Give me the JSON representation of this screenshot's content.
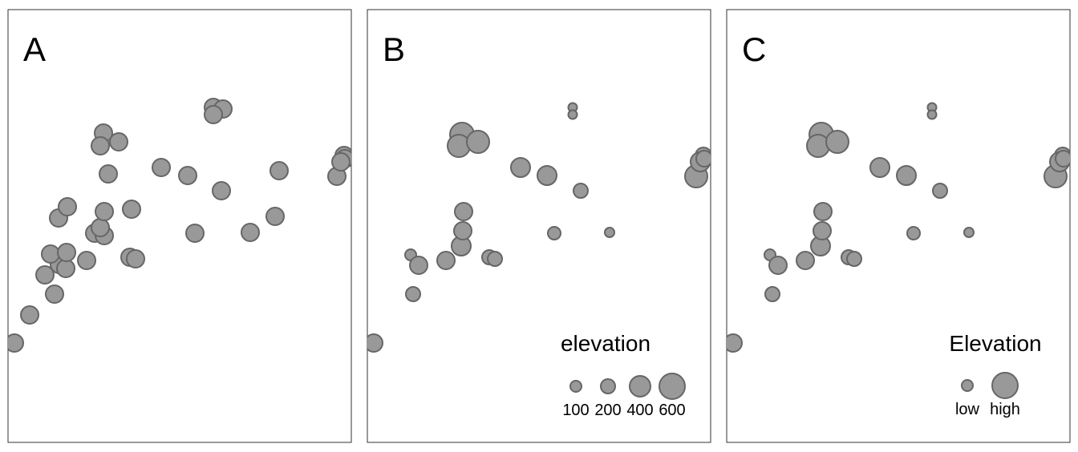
{
  "colors": {
    "point_fill": "#999999",
    "point_stroke": "#666666",
    "frame": "#333333",
    "text": "#000000"
  },
  "chart_data": [
    {
      "type": "scatter",
      "panel_label": "A",
      "size_encoding": "none",
      "points": [
        {
          "x": 1,
          "y": 1
        },
        {
          "x": 2,
          "y": 2
        },
        {
          "x": 3,
          "y": 3
        },
        {
          "x": 4,
          "y": 4
        },
        {
          "x": 5,
          "y": 5
        },
        {
          "x": 6,
          "y": 6
        },
        {
          "x": 7,
          "y": 7
        },
        {
          "x": 8,
          "y": 8
        },
        {
          "x": 9,
          "y": 9
        },
        {
          "x": 10,
          "y": 10
        },
        {
          "x": 11,
          "y": 11
        },
        {
          "x": 12,
          "y": 12
        },
        {
          "x": 13,
          "y": 13
        },
        {
          "x": 14,
          "y": 14
        },
        {
          "x": 15,
          "y": 15
        },
        {
          "x": 16,
          "y": 16
        },
        {
          "x": 17,
          "y": 17
        },
        {
          "x": 18,
          "y": 18
        },
        {
          "x": 19,
          "y": 19
        },
        {
          "x": 20,
          "y": 20
        },
        {
          "x": 21,
          "y": 21
        },
        {
          "x": 22,
          "y": 22
        },
        {
          "x": 23,
          "y": 23
        },
        {
          "x": 24,
          "y": 24
        },
        {
          "x": 25,
          "y": 25
        },
        {
          "x": 26,
          "y": 26
        },
        {
          "x": 27,
          "y": 27
        },
        {
          "x": 28,
          "y": 28
        },
        {
          "x": 29,
          "y": 29
        },
        {
          "x": 30,
          "y": 30
        },
        {
          "x": 31,
          "y": 31
        },
        {
          "x": 32,
          "y": 32
        },
        {
          "x": 33,
          "y": 33
        },
        {
          "x": 34,
          "y": 34
        },
        {
          "x": 35,
          "y": 35
        },
        {
          "x": 36,
          "y": 36
        }
      ]
    },
    {
      "type": "scatter",
      "panel_label": "B",
      "size_encoding": "elevation",
      "legend": {
        "title": "elevation",
        "values": [
          100,
          200,
          400,
          600
        ],
        "labels": [
          "100",
          "200",
          "400",
          "600"
        ]
      },
      "points": [
        {
          "x": 1,
          "y": 1,
          "elevation": 300
        },
        {
          "x": 2,
          "y": 2,
          "elevation": 230
        },
        {
          "x": 3,
          "y": 3,
          "elevation": 100
        },
        {
          "x": 4,
          "y": 4,
          "elevation": 290
        },
        {
          "x": 5,
          "y": 5,
          "elevation": 270
        },
        {
          "x": 6,
          "y": 6,
          "elevation": 240
        },
        {
          "x": 7,
          "y": 7,
          "elevation": 260
        },
        {
          "x": 8,
          "y": 8,
          "elevation": 300
        },
        {
          "x": 9,
          "y": 9,
          "elevation": 290
        },
        {
          "x": 10,
          "y": 10,
          "elevation": 260
        },
        {
          "x": 11,
          "y": 11,
          "elevation": 220
        },
        {
          "x": 12,
          "y": 12,
          "elevation": 520
        },
        {
          "x": 13,
          "y": 13,
          "elevation": 510
        },
        {
          "x": 14,
          "y": 14,
          "elevation": 470
        },
        {
          "x": 15,
          "y": 15,
          "elevation": 320
        },
        {
          "x": 16,
          "y": 16,
          "elevation": 300
        },
        {
          "x": 17,
          "y": 17,
          "elevation": 150
        },
        {
          "x": 18,
          "y": 18,
          "elevation": 70
        },
        {
          "x": 19,
          "y": 19,
          "elevation": 60
        },
        {
          "x": 20,
          "y": 20,
          "elevation": 170
        },
        {
          "x": 21,
          "y": 21,
          "elevation": 140
        },
        {
          "x": 22,
          "y": 22,
          "elevation": 60
        },
        {
          "x": 23,
          "y": 23,
          "elevation": 200
        },
        {
          "x": 24,
          "y": 24,
          "elevation": 220
        },
        {
          "x": 25,
          "y": 25,
          "elevation": 260
        },
        {
          "x": 26,
          "y": 26,
          "elevation": 360
        },
        {
          "x": 27,
          "y": 27,
          "elevation": 280
        },
        {
          "x": 28,
          "y": 28,
          "elevation": 230
        },
        {
          "x": 29,
          "y": 29,
          "elevation": 140
        },
        {
          "x": 30,
          "y": 30,
          "elevation": 160
        },
        {
          "x": 31,
          "y": 31,
          "elevation": 190
        },
        {
          "x": 32,
          "y": 32,
          "elevation": 210
        },
        {
          "x": 33,
          "y": 33,
          "elevation": 240
        },
        {
          "x": 34,
          "y": 34,
          "elevation": 260
        },
        {
          "x": 35,
          "y": 35,
          "elevation": 230
        },
        {
          "x": 36,
          "y": 36,
          "elevation": 250
        }
      ]
    },
    {
      "type": "scatter",
      "panel_label": "C",
      "size_encoding": "elevation",
      "legend": {
        "title": "Elevation",
        "values": [
          100,
          600
        ],
        "labels": [
          "low",
          "high"
        ]
      },
      "points": "same as B"
    }
  ]
}
